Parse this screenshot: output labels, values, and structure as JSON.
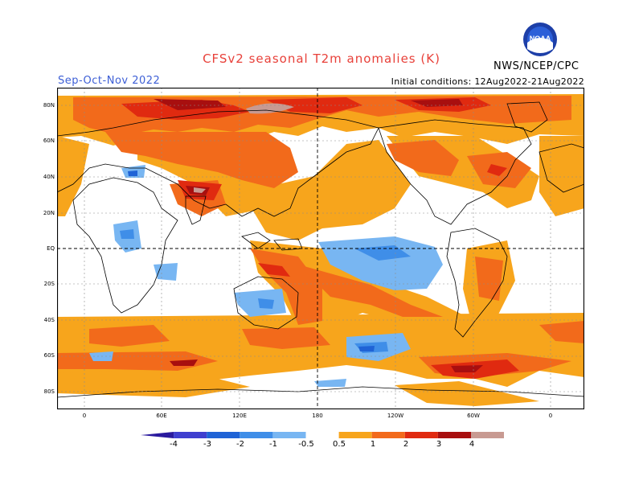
{
  "header": {
    "title": "CFSv2 seasonal T2m anomalies (K)",
    "season": "Sep-Oct-Nov 2022",
    "initial_conditions": "Initial conditions: 12Aug2022-21Aug2022",
    "agency": "NWS/NCEP/CPC",
    "logo_text": "NOAA"
  },
  "map": {
    "lat_labels": [
      "80N",
      "60N",
      "40N",
      "20N",
      "EQ",
      "20S",
      "40S",
      "60S",
      "80S"
    ],
    "lon_labels": [
      "0",
      "60E",
      "120E",
      "180",
      "120W",
      "60W",
      "0"
    ]
  },
  "colorbar": {
    "labels": [
      "-4",
      "-3",
      "-2",
      "-1",
      "-0.5",
      "0.5",
      "1",
      "2",
      "3",
      "4"
    ],
    "colors": {
      "lt_neg4": "#2a1a9e",
      "neg4_neg3": "#3f3fcf",
      "neg3_neg2": "#1f63d6",
      "neg2_neg1": "#3f8ee8",
      "neg1_neg05": "#78b6f2",
      "neutral": "#ffffff",
      "pos05_1": "#f7a51c",
      "pos1_2": "#f26a1b",
      "pos2_3": "#e02a10",
      "pos3_4": "#a80f0f",
      "pos4_5": "#c89a92",
      "gt5": "#6e3d2c"
    }
  }
}
